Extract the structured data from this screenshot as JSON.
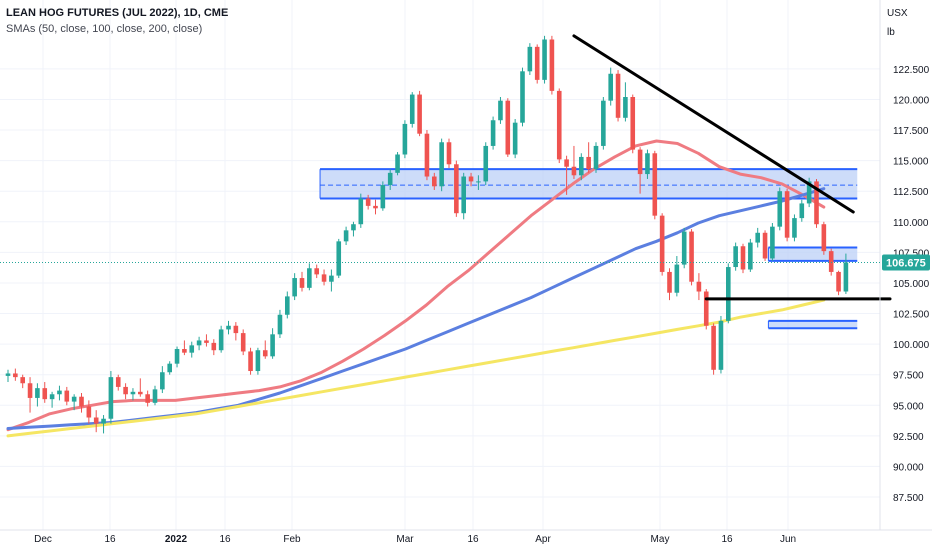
{
  "header": {
    "title": "LEAN HOG FUTURES (JUL 2022), 1D, CME",
    "subtitle": "SMAs (50, close, 100, close, 200, close)"
  },
  "axis": {
    "currency": "USX",
    "unit": "lb"
  },
  "colors": {
    "up": "#26a69a",
    "down": "#ef5350",
    "sma50": "#ef7b82",
    "sma100": "#5b7fe0",
    "sma200": "#f5e663",
    "zone_fill": "#bcd0f7",
    "zone_border": "#2962ff",
    "trendline": "#000000",
    "price_tag": "#26a69a"
  },
  "chart_data": {
    "type": "candlestick",
    "title": "LEAN HOG FUTURES (JUL 2022), 1D, CME",
    "ylim": [
      85.5,
      126.5
    ],
    "y_ticks": [
      "87.500",
      "90.000",
      "92.500",
      "95.000",
      "97.500",
      "100.000",
      "102.500",
      "105.000",
      "107.500",
      "110.000",
      "112.500",
      "115.000",
      "117.500",
      "120.000",
      "122.500"
    ],
    "x_ticks": [
      "Dec",
      "16",
      "2022",
      "16",
      "Feb",
      "Mar",
      "16",
      "Apr",
      "May",
      "16",
      "Jun"
    ],
    "last_price": "106.675",
    "candles": [
      [
        97.4,
        97.9,
        96.9,
        97.6
      ],
      [
        97.6,
        98.0,
        97.0,
        97.3
      ],
      [
        97.3,
        97.5,
        96.4,
        96.8
      ],
      [
        96.8,
        97.3,
        94.4,
        95.6
      ],
      [
        95.6,
        96.8,
        94.9,
        96.4
      ],
      [
        96.4,
        96.9,
        95.2,
        95.5
      ],
      [
        95.5,
        96.1,
        94.8,
        95.9
      ],
      [
        95.9,
        96.6,
        95.4,
        96.2
      ],
      [
        96.2,
        96.5,
        95.0,
        95.3
      ],
      [
        95.3,
        95.9,
        94.6,
        95.7
      ],
      [
        95.7,
        96.0,
        94.4,
        94.9
      ],
      [
        94.9,
        95.4,
        93.5,
        94.0
      ],
      [
        94.0,
        94.6,
        92.8,
        93.5
      ],
      [
        93.5,
        94.2,
        92.7,
        93.9
      ],
      [
        93.9,
        97.8,
        93.5,
        97.3
      ],
      [
        97.3,
        97.5,
        96.2,
        96.5
      ],
      [
        96.5,
        96.8,
        95.5,
        95.9
      ],
      [
        95.9,
        96.4,
        95.4,
        96.1
      ],
      [
        96.1,
        97.2,
        95.7,
        95.9
      ],
      [
        95.9,
        96.2,
        94.9,
        95.2
      ],
      [
        95.2,
        96.6,
        95.0,
        96.3
      ],
      [
        96.3,
        98.2,
        96.0,
        97.7
      ],
      [
        97.7,
        98.6,
        97.5,
        98.4
      ],
      [
        98.4,
        99.8,
        98.1,
        99.6
      ],
      [
        99.6,
        100.3,
        99.1,
        99.3
      ],
      [
        99.3,
        100.2,
        98.9,
        99.9
      ],
      [
        99.9,
        100.6,
        99.5,
        100.3
      ],
      [
        100.3,
        100.8,
        99.8,
        100.1
      ],
      [
        100.1,
        100.4,
        99.1,
        99.5
      ],
      [
        99.5,
        101.5,
        99.3,
        101.2
      ],
      [
        101.2,
        101.9,
        100.8,
        101.5
      ],
      [
        101.5,
        101.8,
        100.3,
        100.9
      ],
      [
        100.9,
        101.2,
        99.1,
        99.4
      ],
      [
        99.4,
        99.7,
        97.5,
        97.8
      ],
      [
        97.8,
        99.7,
        97.5,
        99.5
      ],
      [
        99.5,
        100.3,
        98.8,
        99.0
      ],
      [
        99.0,
        101.3,
        98.8,
        100.8
      ],
      [
        100.8,
        102.8,
        100.5,
        102.4
      ],
      [
        102.4,
        104.3,
        102.1,
        103.9
      ],
      [
        103.9,
        105.8,
        103.6,
        105.4
      ],
      [
        105.4,
        105.9,
        104.3,
        104.6
      ],
      [
        104.6,
        106.6,
        104.4,
        106.2
      ],
      [
        106.2,
        106.5,
        105.4,
        105.7
      ],
      [
        105.7,
        106.1,
        104.8,
        105.1
      ],
      [
        105.1,
        106.1,
        104.3,
        105.6
      ],
      [
        105.6,
        108.6,
        105.4,
        108.4
      ],
      [
        108.4,
        109.6,
        108.1,
        109.3
      ],
      [
        109.3,
        110.0,
        108.8,
        109.8
      ],
      [
        109.8,
        112.3,
        109.5,
        111.9
      ],
      [
        111.9,
        112.2,
        111.0,
        111.3
      ],
      [
        111.3,
        111.8,
        110.6,
        111.1
      ],
      [
        111.1,
        113.3,
        110.9,
        113.0
      ],
      [
        113.0,
        114.3,
        112.6,
        114.0
      ],
      [
        114.0,
        115.7,
        113.8,
        115.5
      ],
      [
        115.5,
        118.3,
        115.2,
        118.0
      ],
      [
        118.0,
        120.6,
        117.7,
        120.4
      ],
      [
        120.4,
        120.7,
        117.0,
        117.2
      ],
      [
        117.2,
        117.5,
        113.4,
        113.7
      ],
      [
        113.7,
        114.0,
        112.6,
        112.9
      ],
      [
        112.9,
        116.8,
        112.5,
        116.5
      ],
      [
        116.5,
        116.8,
        114.4,
        114.7
      ],
      [
        114.7,
        115.0,
        110.4,
        110.7
      ],
      [
        110.7,
        114.0,
        110.2,
        113.7
      ],
      [
        113.7,
        114.0,
        112.9,
        113.3
      ],
      [
        113.3,
        113.8,
        112.6,
        113.3
      ],
      [
        113.3,
        116.5,
        113.0,
        116.2
      ],
      [
        116.2,
        118.6,
        115.9,
        118.3
      ],
      [
        118.3,
        120.2,
        118.0,
        119.9
      ],
      [
        119.9,
        120.1,
        115.3,
        115.5
      ],
      [
        115.5,
        118.4,
        115.2,
        118.1
      ],
      [
        118.1,
        122.6,
        117.8,
        122.3
      ],
      [
        122.3,
        124.6,
        122.0,
        124.3
      ],
      [
        124.3,
        124.5,
        121.3,
        121.6
      ],
      [
        121.6,
        125.2,
        121.3,
        124.9
      ],
      [
        124.9,
        125.2,
        120.4,
        120.7
      ],
      [
        120.7,
        120.9,
        114.8,
        115.1
      ],
      [
        115.1,
        115.4,
        112.2,
        114.5
      ],
      [
        114.5,
        116.2,
        113.5,
        113.8
      ],
      [
        113.8,
        115.6,
        113.4,
        115.3
      ],
      [
        115.3,
        116.5,
        114.0,
        114.3
      ],
      [
        114.3,
        116.5,
        114.0,
        116.2
      ],
      [
        116.2,
        120.2,
        115.9,
        119.9
      ],
      [
        119.9,
        122.6,
        119.5,
        122.1
      ],
      [
        122.1,
        122.4,
        118.2,
        118.5
      ],
      [
        118.5,
        121.4,
        118.2,
        120.2
      ],
      [
        120.2,
        120.4,
        115.6,
        115.9
      ],
      [
        115.9,
        116.1,
        112.3,
        113.9
      ],
      [
        113.9,
        115.9,
        113.5,
        115.6
      ],
      [
        115.6,
        115.8,
        110.2,
        110.5
      ],
      [
        110.5,
        110.7,
        105.6,
        105.9
      ],
      [
        105.9,
        106.2,
        103.6,
        104.2
      ],
      [
        104.2,
        107.2,
        103.9,
        106.5
      ],
      [
        106.5,
        109.5,
        106.2,
        109.2
      ],
      [
        109.2,
        109.4,
        104.8,
        105.1
      ],
      [
        105.1,
        105.8,
        103.6,
        104.3
      ],
      [
        104.3,
        104.5,
        101.2,
        101.5
      ],
      [
        101.5,
        101.7,
        97.5,
        97.9
      ],
      [
        97.9,
        102.3,
        97.6,
        101.9
      ],
      [
        101.9,
        106.6,
        101.7,
        106.3
      ],
      [
        106.3,
        108.3,
        106.0,
        108.0
      ],
      [
        108.0,
        108.2,
        105.8,
        106.1
      ],
      [
        106.1,
        108.6,
        105.9,
        108.3
      ],
      [
        108.3,
        109.5,
        107.9,
        109.1
      ],
      [
        109.1,
        109.3,
        106.8,
        107.0
      ],
      [
        107.0,
        109.9,
        106.8,
        109.6
      ],
      [
        109.6,
        112.8,
        109.3,
        112.5
      ],
      [
        112.5,
        112.7,
        108.4,
        108.7
      ],
      [
        108.7,
        110.6,
        108.4,
        110.3
      ],
      [
        110.3,
        111.8,
        110.0,
        111.5
      ],
      [
        111.5,
        113.6,
        111.2,
        113.3
      ],
      [
        113.3,
        113.5,
        109.5,
        109.8
      ],
      [
        109.8,
        110.0,
        107.3,
        107.6
      ],
      [
        107.6,
        107.8,
        105.6,
        105.9
      ],
      [
        105.9,
        106.0,
        104.0,
        104.3
      ],
      [
        104.3,
        107.4,
        104.1,
        106.675
      ]
    ],
    "series": [
      {
        "name": "SMA 50",
        "x_start": 0,
        "x_end": 111,
        "values": [
          93.0,
          93.6,
          94.3,
          94.7,
          95.0,
          95.3,
          95.4,
          95.4,
          95.4,
          95.6,
          95.8,
          96.0,
          96.2,
          96.5,
          97.0,
          97.7,
          98.6,
          99.6,
          100.7,
          101.9,
          103.2,
          104.7,
          106.0,
          107.5,
          109.0,
          110.5,
          111.8,
          113.1,
          114.3,
          115.3,
          116.2,
          116.6,
          116.4,
          115.6,
          114.5,
          113.9,
          113.6,
          113.1,
          112.2,
          111.2
        ]
      },
      {
        "name": "SMA 100",
        "x_start": 0,
        "x_end": 111,
        "values": [
          93.1,
          93.2,
          93.3,
          93.4,
          93.5,
          93.6,
          93.8,
          94.0,
          94.2,
          94.4,
          94.7,
          95.0,
          95.5,
          96.0,
          96.6,
          97.2,
          97.8,
          98.4,
          99.0,
          99.6,
          100.3,
          101.0,
          101.7,
          102.4,
          103.1,
          103.8,
          104.6,
          105.4,
          106.2,
          107.0,
          107.8,
          108.4,
          109.1,
          109.9,
          110.5,
          110.9,
          111.3,
          111.7,
          112.2,
          112.7
        ]
      },
      {
        "name": "SMA 200",
        "x_start": 0,
        "x_end": 111,
        "values": [
          92.5,
          92.7,
          92.9,
          93.1,
          93.3,
          93.5,
          93.7,
          93.9,
          94.1,
          94.3,
          94.6,
          94.9,
          95.2,
          95.5,
          95.8,
          96.1,
          96.4,
          96.7,
          97.0,
          97.3,
          97.6,
          97.9,
          98.2,
          98.5,
          98.8,
          99.1,
          99.4,
          99.7,
          100.0,
          100.3,
          100.6,
          100.9,
          101.2,
          101.5,
          101.8,
          102.2,
          102.5,
          102.8,
          103.2,
          103.6
        ]
      }
    ],
    "zones": [
      {
        "y0": 111.9,
        "y1": 114.3,
        "x0": 43,
        "x1": 115,
        "mid": 113.0
      },
      {
        "y0": 106.8,
        "y1": 107.9,
        "x0": 104,
        "x1": 115
      },
      {
        "y0": 101.3,
        "y1": 101.9,
        "x0": 104,
        "x1": 115
      }
    ],
    "trendlines": [
      {
        "x0": 77,
        "y0": 125.2,
        "x1": 115,
        "y1": 110.8
      },
      {
        "x0": 95,
        "y0": 103.7,
        "x1": 120,
        "y1": 103.7
      }
    ]
  }
}
